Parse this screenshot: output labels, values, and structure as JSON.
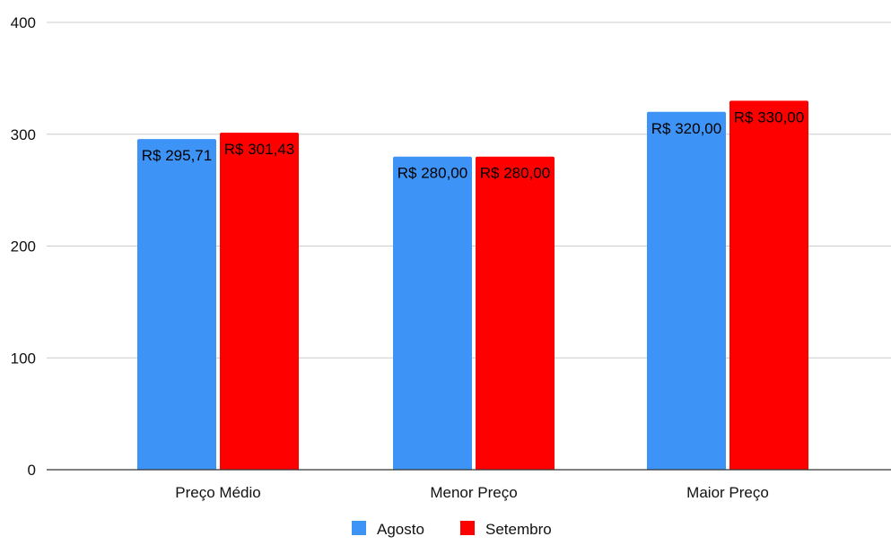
{
  "chart_data": {
    "type": "bar",
    "categories": [
      "Preço Médio",
      "Menor Preço",
      "Maior Preço"
    ],
    "series": [
      {
        "name": "Agosto",
        "color": "#3d94f6",
        "values": [
          295.71,
          280.0,
          320.0
        ],
        "labels": [
          "R$ 295,71",
          "R$ 280,00",
          "R$ 320,00"
        ]
      },
      {
        "name": "Setembro",
        "color": "#ff0000",
        "values": [
          301.43,
          280.0,
          330.0
        ],
        "labels": [
          "R$ 301,43",
          "R$ 280,00",
          "R$ 330,00"
        ]
      }
    ],
    "yticks": [
      "0",
      "100",
      "200",
      "300",
      "400"
    ],
    "ylim": [
      0,
      400
    ],
    "grid": true,
    "legend_position": "bottom"
  }
}
